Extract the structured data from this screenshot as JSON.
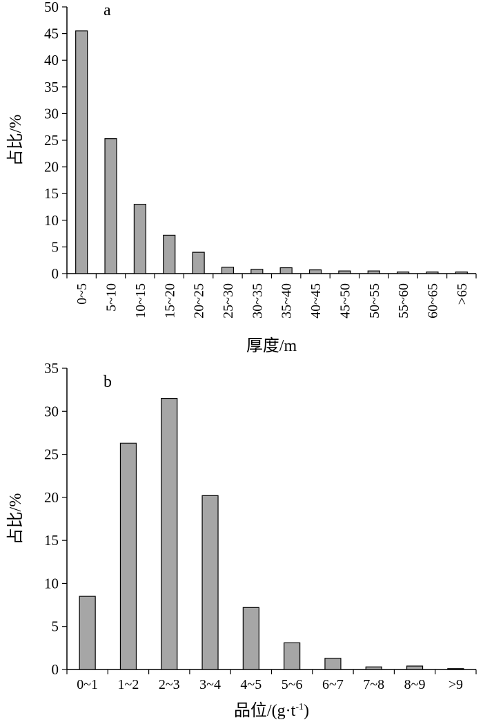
{
  "chart_data": [
    {
      "type": "bar",
      "panel_label": "a",
      "title": "",
      "xlabel": "厚度/m",
      "ylabel": "占比/%",
      "ylim": [
        0,
        50
      ],
      "yticks": [
        0,
        5,
        10,
        15,
        20,
        25,
        30,
        35,
        40,
        45,
        50
      ],
      "categories": [
        "0~5",
        "5~10",
        "10~15",
        "15~20",
        "20~25",
        "25~30",
        "30~35",
        "35~40",
        "40~45",
        "45~50",
        "50~55",
        "55~60",
        "60~65",
        ">65"
      ],
      "values": [
        45.5,
        25.3,
        13.0,
        7.2,
        4.0,
        1.2,
        0.8,
        1.1,
        0.7,
        0.5,
        0.5,
        0.3,
        0.3,
        0.3
      ],
      "xtick_rotation": "vertical",
      "grid": false,
      "legend": "none",
      "colors": {
        "bar_fill": "#a6a6a6",
        "bar_edge": "#000000"
      }
    },
    {
      "type": "bar",
      "panel_label": "b",
      "title": "",
      "xlabel": "品位/(g·t",
      "xlabel_sup": "-1",
      "xlabel_end": ")",
      "ylabel": "占比/%",
      "ylim": [
        0,
        35
      ],
      "yticks": [
        0,
        5,
        10,
        15,
        20,
        25,
        30,
        35
      ],
      "categories": [
        "0~1",
        "1~2",
        "2~3",
        "3~4",
        "4~5",
        "5~6",
        "6~7",
        "7~8",
        "8~9",
        ">9"
      ],
      "values": [
        8.5,
        26.3,
        31.5,
        20.2,
        7.2,
        3.1,
        1.3,
        0.3,
        0.4,
        0.1
      ],
      "xtick_rotation": "horizontal",
      "grid": false,
      "legend": "none",
      "colors": {
        "bar_fill": "#a6a6a6",
        "bar_edge": "#000000"
      }
    }
  ]
}
